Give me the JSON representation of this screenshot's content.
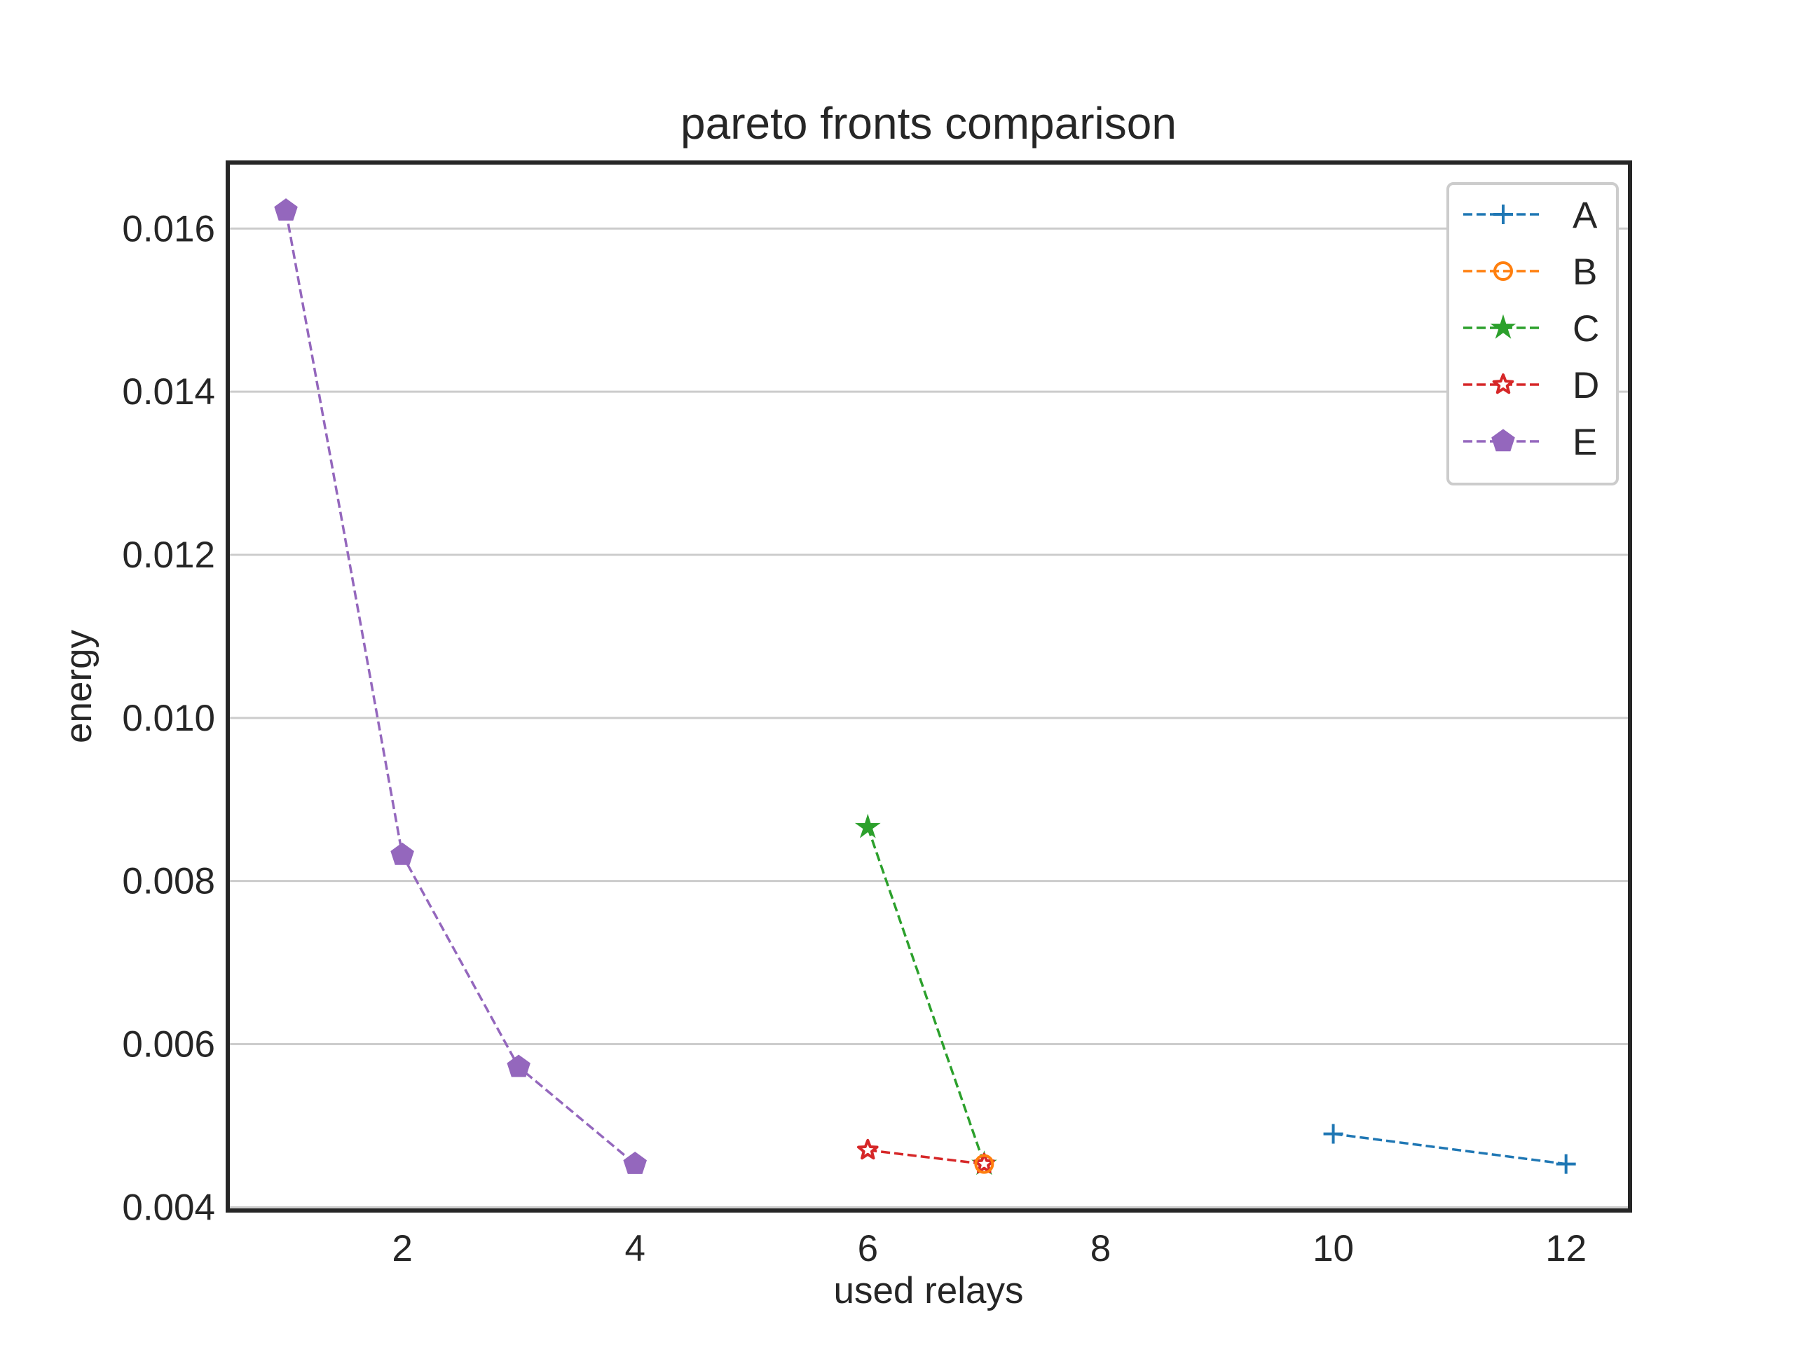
{
  "chart_data": {
    "type": "line",
    "title": "pareto fronts comparison",
    "xlabel": "used relays",
    "ylabel": "energy",
    "xlim": [
      0.5,
      12.55
    ],
    "ylim": [
      0.00396,
      0.01681
    ],
    "xticks": [
      2,
      4,
      6,
      8,
      10,
      12
    ],
    "yticks": [
      0.004,
      0.006,
      0.008,
      0.01,
      0.012,
      0.014,
      0.016
    ],
    "ytick_labels": [
      "0.004",
      "0.006",
      "0.008",
      "0.010",
      "0.012",
      "0.014",
      "0.016"
    ],
    "xtick_labels": [
      "2",
      "4",
      "6",
      "8",
      "10",
      "12"
    ],
    "grid": "horizontal",
    "legend_position": "top-right",
    "series": [
      {
        "name": "A",
        "color": "#1f77b4",
        "marker": "plus",
        "x": [
          10,
          12
        ],
        "y": [
          0.0049,
          0.00453
        ]
      },
      {
        "name": "B",
        "color": "#ff7f0e",
        "marker": "circle-open",
        "x": [
          7
        ],
        "y": [
          0.00453
        ]
      },
      {
        "name": "C",
        "color": "#2ca02c",
        "marker": "star",
        "x": [
          6,
          7
        ],
        "y": [
          0.00866,
          0.00453
        ]
      },
      {
        "name": "D",
        "color": "#d62728",
        "marker": "star-open",
        "x": [
          6,
          7
        ],
        "y": [
          0.0047,
          0.00453
        ]
      },
      {
        "name": "E",
        "color": "#9467bd",
        "marker": "pentagon",
        "x": [
          1,
          2,
          3,
          4
        ],
        "y": [
          0.01622,
          0.00832,
          0.00572,
          0.00453
        ]
      }
    ]
  }
}
